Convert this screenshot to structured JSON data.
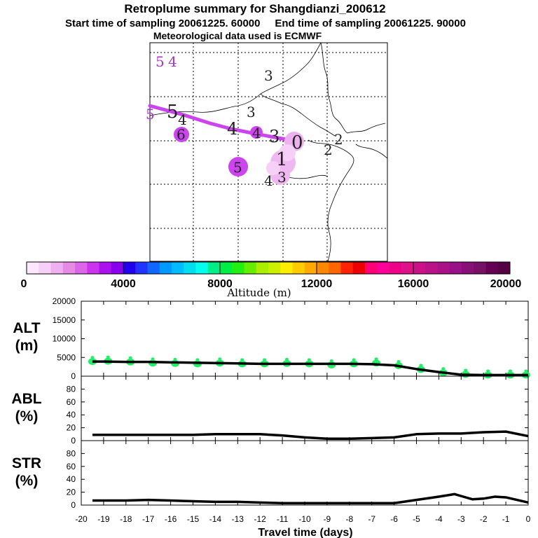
{
  "title": {
    "line1": "Retroplume summary for Shangdianzi_200612",
    "line2": "Start time of sampling 20061225. 60000     End time of sampling 20061225. 90000",
    "line3": "Meteorological data used is ECMWF"
  },
  "colors": {
    "track": "#cc44ee",
    "dots": "#22ee66",
    "line": "#000000"
  },
  "colorbar": {
    "label": "Altitude (m)",
    "ticks": [
      "0",
      "4000",
      "8000",
      "12000",
      "16000",
      "20000"
    ],
    "min": 0,
    "max": 20000,
    "colors": [
      "#ffe8ff",
      "#f7d0f7",
      "#efb0ef",
      "#e58ae5",
      "#dd66e8",
      "#cc33ee",
      "#aa11ee",
      "#8800ee",
      "#2200ee",
      "#2233ff",
      "#1166ff",
      "#0099ff",
      "#00bbff",
      "#00ddee",
      "#00ffee",
      "#00ee88",
      "#00ee44",
      "#22ee11",
      "#66ee00",
      "#aaee00",
      "#ccee00",
      "#ffee00",
      "#ffcc00",
      "#ffaa00",
      "#ff8800",
      "#ff6600",
      "#ff2200",
      "#ee0000",
      "#ff0077",
      "#ff0099",
      "#ee0088",
      "#dd1188",
      "#cc1188",
      "#bb1188",
      "#aa1188",
      "#991188",
      "#881177",
      "#771166",
      "#660055",
      "#550044"
    ]
  },
  "map_labels": [
    {
      "text": "5",
      "color": "#aa33cc"
    },
    {
      "text": "4",
      "color": "#aa33cc"
    },
    {
      "text": "3",
      "color": "#222222"
    },
    {
      "text": "5",
      "color": "#222222"
    },
    {
      "text": "4",
      "color": "#222222"
    },
    {
      "text": "5",
      "color": "#aa33cc"
    },
    {
      "text": "3",
      "color": "#222222"
    },
    {
      "text": "6",
      "color": "#222222"
    },
    {
      "text": "4",
      "color": "#222222"
    },
    {
      "text": "4",
      "color": "#222222"
    },
    {
      "text": "3",
      "color": "#222222"
    },
    {
      "text": "2",
      "color": "#222222"
    },
    {
      "text": "2",
      "color": "#222222"
    },
    {
      "text": "5",
      "color": "#222222"
    },
    {
      "text": "1",
      "color": "#222222"
    },
    {
      "text": "4",
      "color": "#222222"
    },
    {
      "text": "3",
      "color": "#222222"
    },
    {
      "text": "0",
      "color": "#222222"
    }
  ],
  "chart_data": [
    {
      "type": "line",
      "panel": "ALT",
      "ylabel": "ALT (m)",
      "ylabel_lines": [
        "ALT",
        "(m)"
      ],
      "ylim": [
        0,
        20000
      ],
      "yticks": [
        "20000",
        "15000",
        "10000",
        "5000",
        "0"
      ],
      "x": [
        -19.5,
        -19,
        -18,
        -17,
        -16,
        -15,
        -14,
        -13,
        -12,
        -11,
        -10,
        -9,
        -8,
        -7,
        -6,
        -5,
        -4,
        -3,
        -2,
        -1,
        0
      ],
      "values": [
        3900,
        3900,
        3800,
        3800,
        3700,
        3600,
        3500,
        3400,
        3300,
        3300,
        3300,
        3300,
        3300,
        3200,
        2900,
        1900,
        1100,
        400,
        300,
        300,
        300
      ],
      "dots_x": [
        -19.5,
        -18.8,
        -17.8,
        -16.8,
        -15.8,
        -14.8,
        -13.8,
        -12.8,
        -11.8,
        -10.8,
        -9.8,
        -8.8,
        -7.8,
        -6.8,
        -5.8,
        -4.8,
        -3.8,
        -2.8,
        -1.8,
        -0.8,
        -0.1
      ],
      "dots_values": [
        3900,
        4000,
        3800,
        3500,
        3400,
        3300,
        3500,
        3300,
        3300,
        3400,
        3300,
        3000,
        3300,
        3500,
        2800,
        1800,
        900,
        500,
        300,
        300,
        300
      ]
    },
    {
      "type": "line",
      "panel": "ABL",
      "ylabel": "ABL (%)",
      "ylabel_lines": [
        "ABL",
        "(%)"
      ],
      "ylim": [
        0,
        100
      ],
      "yticks": [
        "80",
        "60",
        "40",
        "20",
        "0"
      ],
      "x": [
        -19.5,
        -19,
        -18,
        -17,
        -16,
        -15,
        -14,
        -13,
        -12,
        -11,
        -10,
        -9,
        -8,
        -7,
        -6,
        -5,
        -4,
        -3,
        -2,
        -1,
        0
      ],
      "values": [
        9,
        9,
        9,
        9,
        9,
        9,
        10,
        10,
        10,
        8,
        5,
        3,
        3,
        4,
        5,
        10,
        11,
        11,
        13,
        14,
        7
      ]
    },
    {
      "type": "line",
      "panel": "STR",
      "ylabel": "STR (%)",
      "ylabel_lines": [
        "STR",
        "(%)"
      ],
      "ylim": [
        0,
        100
      ],
      "yticks": [
        "80",
        "60",
        "40",
        "20",
        "0"
      ],
      "x": [
        -19.5,
        -19,
        -18,
        -17,
        -16,
        -15,
        -14,
        -13,
        -12,
        -11,
        -10,
        -9,
        -8,
        -7,
        -6,
        -5,
        -4,
        -3.3,
        -3,
        -2.5,
        -2,
        -1.5,
        -1,
        0
      ],
      "values": [
        7,
        7,
        7,
        8,
        7,
        6,
        5,
        5,
        4,
        3,
        3,
        3,
        3,
        3,
        3,
        8,
        13,
        17,
        14,
        9,
        10,
        13,
        12,
        4
      ]
    }
  ],
  "xaxis": {
    "label": "Travel time (days)",
    "ticks": [
      "-20",
      "-19",
      "-18",
      "-17",
      "-16",
      "-15",
      "-14",
      "-13",
      "-12",
      "-11",
      "-10",
      "-9",
      "-8",
      "-7",
      "-6",
      "-5",
      "-4",
      "-3",
      "-2",
      "-1",
      "0"
    ],
    "min": -20,
    "max": 0
  }
}
